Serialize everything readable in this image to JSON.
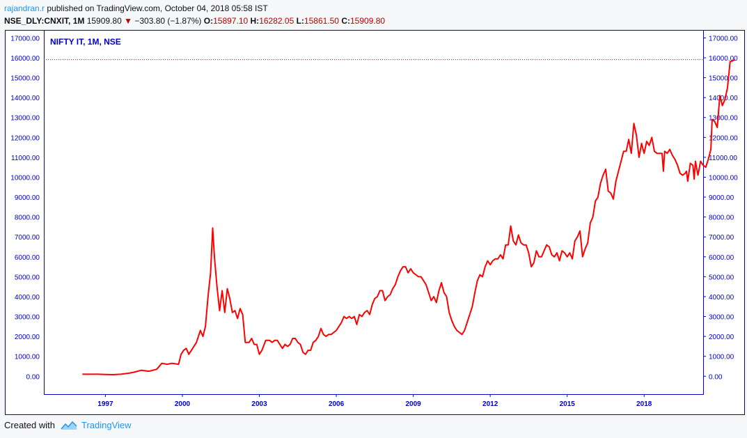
{
  "header": {
    "author": "rajandran.r",
    "published_text": "published on TradingView.com, October 04, 2018 05:58 IST"
  },
  "quote": {
    "symbol": "NSE_DLY:CNXIT, 1M",
    "last": "15909.80",
    "arrow": "▼",
    "change": "−303.80 (−1.87%)",
    "o_label": "O:",
    "o_value": "15897.10",
    "h_label": "H:",
    "h_value": "16282.05",
    "l_label": "L:",
    "l_value": "15861.50",
    "c_label": "C:",
    "c_value": "15909.80"
  },
  "footer": {
    "created_with": "Created with",
    "brand": "TradingView"
  },
  "colors": {
    "line": "#ff0000",
    "axis": "#0000cc",
    "border": "#0000cc",
    "last_price_line": "#d00000"
  },
  "chart_data": {
    "type": "line",
    "title": "NIFTY IT, 1M, NSE",
    "xlabel": "",
    "ylabel": "",
    "ylim": [
      -900,
      17400
    ],
    "xlim": [
      1994.5,
      2020.2
    ],
    "y_ticks": [
      0,
      1000,
      2000,
      3000,
      4000,
      5000,
      6000,
      7000,
      8000,
      9000,
      10000,
      11000,
      12000,
      13000,
      14000,
      15000,
      16000,
      17000
    ],
    "y_tick_labels": [
      "0.00",
      "1000.00",
      "2000.00",
      "3000.00",
      "4000.00",
      "5000.00",
      "6000.00",
      "7000.00",
      "8000.00",
      "9000.00",
      "10000.00",
      "11000.00",
      "12000.00",
      "13000.00",
      "14000.00",
      "15000.00",
      "16000.00",
      "17000.00"
    ],
    "x_ticks": [
      1997,
      2000,
      2003,
      2006,
      2009,
      2012,
      2015,
      2018
    ],
    "x_tick_labels": [
      "1997",
      "2000",
      "2003",
      "2006",
      "2009",
      "2012",
      "2015",
      "2018"
    ],
    "x_tick_positions": [
      1996.9,
      1999.9,
      2002.9,
      2005.9,
      2008.9,
      2011.9,
      2014.9,
      2017.9
    ],
    "last_price": 15909.8,
    "series": [
      {
        "name": "NIFTY IT",
        "points": [
          [
            1996.0,
            100
          ],
          [
            1996.3,
            100
          ],
          [
            1996.6,
            100
          ],
          [
            1996.9,
            90
          ],
          [
            1997.2,
            80
          ],
          [
            1997.5,
            100
          ],
          [
            1997.8,
            150
          ],
          [
            1998.0,
            200
          ],
          [
            1998.3,
            300
          ],
          [
            1998.6,
            250
          ],
          [
            1998.9,
            350
          ],
          [
            1999.1,
            650
          ],
          [
            1999.3,
            600
          ],
          [
            1999.5,
            650
          ],
          [
            1999.75,
            600
          ],
          [
            1999.85,
            1100
          ],
          [
            1999.95,
            1300
          ],
          [
            2000.05,
            1400
          ],
          [
            2000.15,
            1100
          ],
          [
            2000.3,
            1400
          ],
          [
            2000.45,
            1700
          ],
          [
            2000.6,
            2300
          ],
          [
            2000.7,
            2000
          ],
          [
            2000.8,
            2500
          ],
          [
            2000.9,
            4000
          ],
          [
            2001.0,
            5200
          ],
          [
            2001.08,
            7450
          ],
          [
            2001.15,
            6000
          ],
          [
            2001.25,
            4500
          ],
          [
            2001.35,
            3300
          ],
          [
            2001.45,
            4300
          ],
          [
            2001.55,
            3200
          ],
          [
            2001.65,
            4400
          ],
          [
            2001.75,
            3900
          ],
          [
            2001.85,
            3200
          ],
          [
            2001.95,
            3300
          ],
          [
            2002.05,
            2900
          ],
          [
            2002.15,
            3400
          ],
          [
            2002.25,
            3100
          ],
          [
            2002.35,
            1700
          ],
          [
            2002.5,
            1700
          ],
          [
            2002.6,
            1900
          ],
          [
            2002.7,
            1600
          ],
          [
            2002.8,
            1600
          ],
          [
            2002.9,
            1100
          ],
          [
            2003.0,
            1300
          ],
          [
            2003.15,
            1800
          ],
          [
            2003.3,
            1800
          ],
          [
            2003.4,
            1700
          ],
          [
            2003.5,
            1800
          ],
          [
            2003.6,
            1800
          ],
          [
            2003.7,
            1600
          ],
          [
            2003.8,
            1400
          ],
          [
            2003.9,
            1600
          ],
          [
            2004.0,
            1500
          ],
          [
            2004.1,
            1600
          ],
          [
            2004.2,
            1900
          ],
          [
            2004.3,
            1900
          ],
          [
            2004.4,
            1700
          ],
          [
            2004.5,
            1600
          ],
          [
            2004.6,
            1200
          ],
          [
            2004.7,
            1100
          ],
          [
            2004.8,
            1300
          ],
          [
            2004.9,
            1300
          ],
          [
            2005.0,
            1700
          ],
          [
            2005.1,
            1800
          ],
          [
            2005.2,
            2000
          ],
          [
            2005.3,
            2400
          ],
          [
            2005.4,
            2100
          ],
          [
            2005.5,
            2000
          ],
          [
            2005.6,
            2100
          ],
          [
            2005.7,
            2100
          ],
          [
            2005.8,
            2200
          ],
          [
            2005.9,
            2300
          ],
          [
            2006.0,
            2500
          ],
          [
            2006.1,
            2700
          ],
          [
            2006.2,
            3000
          ],
          [
            2006.3,
            2900
          ],
          [
            2006.4,
            3000
          ],
          [
            2006.5,
            2900
          ],
          [
            2006.6,
            3000
          ],
          [
            2006.7,
            2600
          ],
          [
            2006.8,
            3100
          ],
          [
            2006.9,
            3000
          ],
          [
            2007.0,
            3200
          ],
          [
            2007.1,
            3300
          ],
          [
            2007.2,
            3100
          ],
          [
            2007.3,
            3600
          ],
          [
            2007.4,
            3900
          ],
          [
            2007.5,
            4000
          ],
          [
            2007.6,
            4300
          ],
          [
            2007.7,
            4300
          ],
          [
            2007.8,
            3800
          ],
          [
            2007.9,
            4000
          ],
          [
            2008.0,
            4100
          ],
          [
            2008.1,
            4400
          ],
          [
            2008.2,
            4600
          ],
          [
            2008.3,
            5000
          ],
          [
            2008.4,
            5300
          ],
          [
            2008.5,
            5500
          ],
          [
            2008.6,
            5500
          ],
          [
            2008.7,
            5200
          ],
          [
            2008.8,
            5400
          ],
          [
            2008.9,
            5200
          ],
          [
            2009.0,
            5100
          ],
          [
            2009.1,
            5000
          ],
          [
            2009.2,
            5000
          ],
          [
            2009.3,
            4800
          ],
          [
            2009.4,
            4600
          ],
          [
            2009.5,
            4200
          ],
          [
            2009.6,
            3800
          ],
          [
            2009.7,
            4000
          ],
          [
            2009.8,
            3700
          ],
          [
            2009.9,
            4300
          ],
          [
            2010.0,
            4700
          ],
          [
            2010.1,
            4200
          ],
          [
            2010.2,
            4000
          ],
          [
            2010.3,
            3200
          ],
          [
            2010.4,
            2800
          ],
          [
            2010.5,
            2500
          ],
          [
            2010.6,
            2300
          ],
          [
            2010.7,
            2200
          ],
          [
            2010.8,
            2100
          ],
          [
            2010.9,
            2300
          ],
          [
            2011.0,
            2700
          ],
          [
            2011.1,
            3100
          ],
          [
            2011.2,
            3500
          ],
          [
            2011.3,
            4200
          ],
          [
            2011.4,
            4800
          ],
          [
            2011.5,
            5100
          ],
          [
            2011.6,
            5000
          ],
          [
            2011.7,
            5500
          ],
          [
            2011.8,
            5800
          ],
          [
            2011.9,
            5600
          ],
          [
            2012.0,
            5800
          ],
          [
            2012.1,
            5900
          ],
          [
            2012.2,
            5900
          ],
          [
            2012.3,
            6100
          ],
          [
            2012.4,
            5900
          ],
          [
            2012.5,
            6600
          ],
          [
            2012.6,
            6600
          ],
          [
            2012.7,
            7550
          ],
          [
            2012.8,
            6800
          ],
          [
            2012.9,
            6600
          ],
          [
            2013.0,
            7100
          ],
          [
            2013.1,
            6700
          ],
          [
            2013.2,
            6600
          ],
          [
            2013.3,
            6600
          ],
          [
            2013.4,
            6200
          ],
          [
            2013.5,
            5500
          ],
          [
            2013.6,
            5700
          ],
          [
            2013.7,
            6300
          ],
          [
            2013.8,
            6000
          ],
          [
            2013.9,
            6000
          ],
          [
            2014.0,
            6300
          ],
          [
            2014.1,
            6600
          ],
          [
            2014.2,
            6500
          ],
          [
            2014.3,
            6100
          ],
          [
            2014.4,
            6000
          ],
          [
            2014.5,
            6200
          ],
          [
            2014.6,
            5800
          ],
          [
            2014.7,
            6300
          ],
          [
            2014.8,
            6200
          ],
          [
            2014.9,
            6000
          ],
          [
            2015.0,
            6200
          ],
          [
            2015.1,
            5900
          ],
          [
            2015.2,
            6800
          ],
          [
            2015.3,
            7000
          ],
          [
            2015.4,
            7300
          ],
          [
            2015.5,
            6000
          ],
          [
            2015.6,
            6400
          ],
          [
            2015.7,
            6700
          ],
          [
            2015.8,
            7700
          ],
          [
            2015.9,
            8000
          ],
          [
            2016.0,
            8800
          ],
          [
            2016.1,
            9000
          ],
          [
            2016.2,
            9700
          ],
          [
            2016.3,
            10100
          ],
          [
            2016.4,
            10400
          ],
          [
            2016.5,
            9300
          ],
          [
            2016.6,
            9200
          ],
          [
            2016.7,
            8900
          ],
          [
            2016.8,
            9800
          ],
          [
            2016.9,
            10300
          ],
          [
            2017.0,
            10800
          ],
          [
            2017.1,
            11300
          ],
          [
            2017.2,
            11300
          ],
          [
            2017.3,
            11900
          ],
          [
            2017.4,
            11200
          ],
          [
            2017.5,
            12700
          ],
          [
            2017.6,
            12100
          ],
          [
            2017.7,
            11000
          ],
          [
            2017.8,
            11700
          ],
          [
            2017.9,
            11200
          ],
          [
            2018.0,
            11800
          ],
          [
            2018.1,
            11600
          ],
          [
            2018.2,
            12000
          ],
          [
            2018.3,
            11300
          ],
          [
            2018.4,
            11200
          ],
          [
            2018.5,
            11200
          ],
          [
            2018.6,
            11200
          ],
          [
            2018.65,
            10300
          ],
          [
            2018.7,
            11300
          ],
          [
            2018.8,
            11200
          ],
          [
            2018.9,
            11400
          ],
          [
            2019.0,
            11100
          ],
          [
            2019.1,
            10900
          ],
          [
            2019.2,
            10600
          ],
          [
            2019.3,
            10200
          ],
          [
            2019.4,
            10100
          ],
          [
            2019.5,
            10200
          ],
          [
            2019.55,
            10300
          ],
          [
            2019.6,
            9800
          ],
          [
            2019.7,
            10700
          ],
          [
            2019.8,
            10600
          ],
          [
            2019.85,
            9900
          ],
          [
            2019.9,
            10800
          ],
          [
            2020.0,
            10100
          ],
          [
            2020.1,
            10800
          ],
          [
            2020.2,
            10600
          ],
          [
            2020.3,
            10500
          ],
          [
            2020.4,
            10900
          ],
          [
            2020.5,
            11400
          ],
          [
            2020.55,
            12900
          ],
          [
            2020.65,
            12800
          ],
          [
            2020.75,
            12500
          ],
          [
            2020.85,
            14100
          ],
          [
            2020.95,
            13600
          ],
          [
            2021.05,
            13900
          ],
          [
            2021.15,
            14500
          ],
          [
            2021.25,
            15800
          ],
          [
            2021.35,
            15850
          ],
          [
            2021.45,
            15910
          ]
        ]
      }
    ]
  }
}
